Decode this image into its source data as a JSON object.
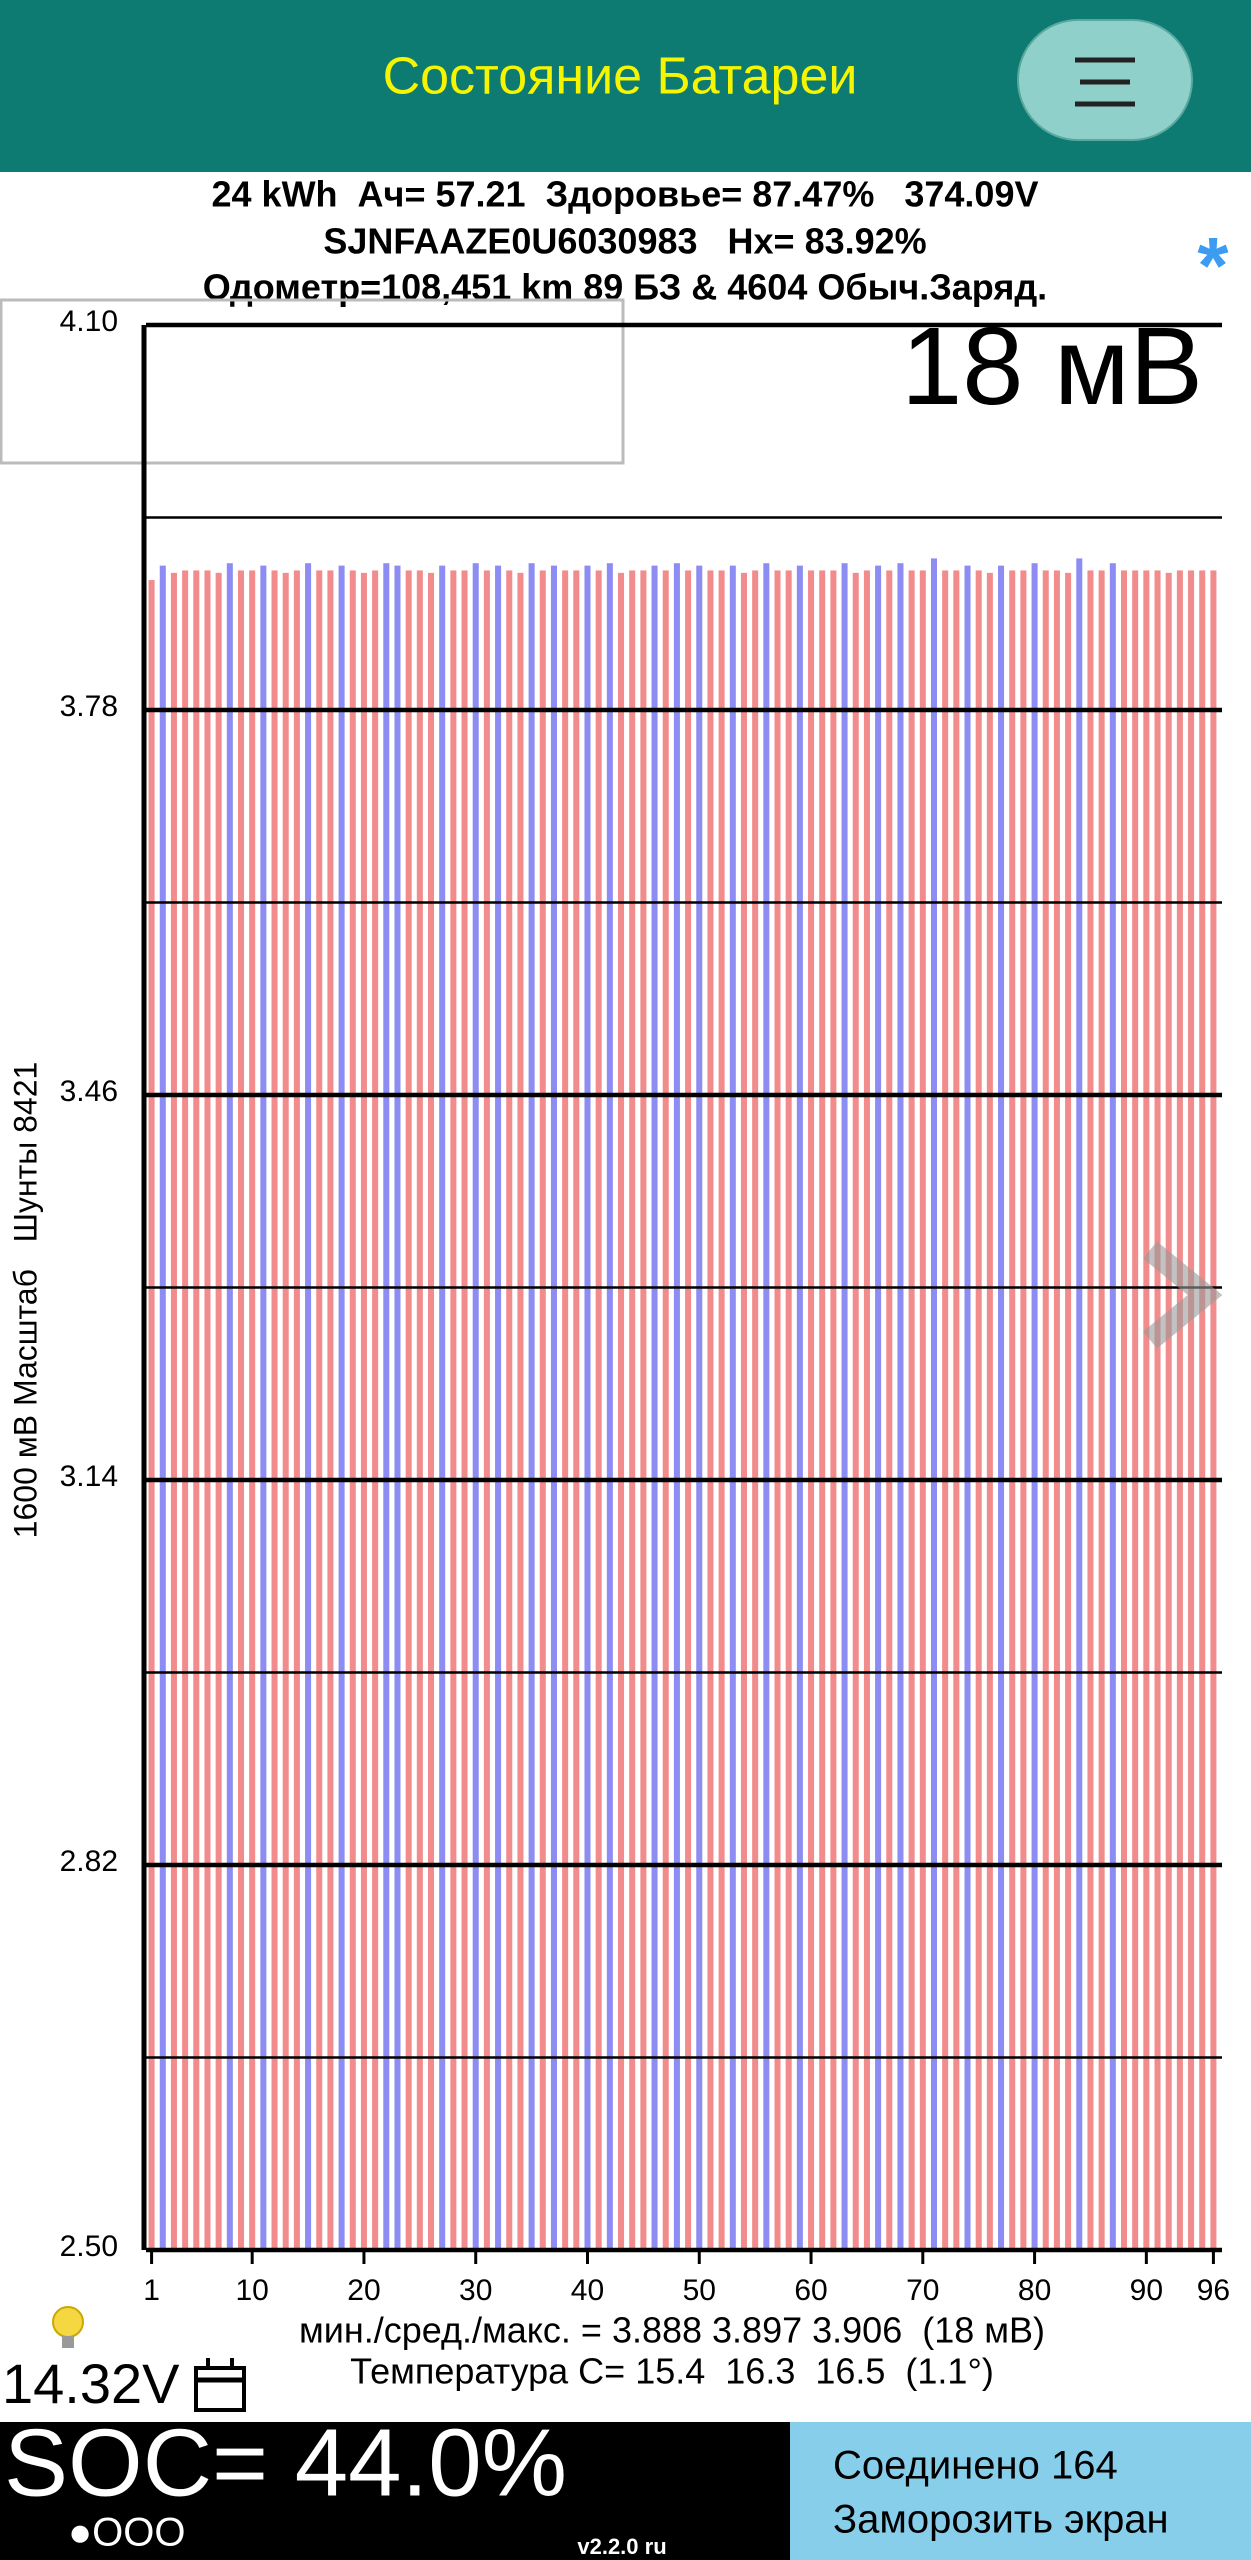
{
  "header": {
    "title": "Состояние Батареи"
  },
  "info": {
    "line1": "24 kWh  Ач= 57.21  Здоровье= 87.47%   374.09V",
    "line2": "SJNFAAZE0U6030983   Hx= 83.92%",
    "line3": "Одометр=108,451 km 89 БЗ & 4604 Обыч.Заряд.",
    "marker": "*"
  },
  "chart_data": {
    "type": "bar",
    "overlay_label": "18 мВ",
    "y_axis_label": "1600 мВ Масштаб   Шунты 8421",
    "categories": [
      1,
      null,
      null,
      null,
      null,
      null,
      null,
      null,
      null,
      10,
      null,
      null,
      null,
      null,
      null,
      null,
      null,
      null,
      null,
      20,
      null,
      null,
      null,
      null,
      null,
      null,
      null,
      null,
      null,
      30,
      null,
      null,
      null,
      null,
      null,
      null,
      null,
      null,
      null,
      40,
      null,
      null,
      null,
      null,
      null,
      null,
      null,
      null,
      null,
      50,
      null,
      null,
      null,
      null,
      null,
      null,
      null,
      null,
      null,
      60,
      null,
      null,
      null,
      null,
      null,
      null,
      null,
      null,
      null,
      70,
      null,
      null,
      null,
      null,
      null,
      null,
      null,
      null,
      null,
      80,
      null,
      null,
      null,
      null,
      null,
      null,
      null,
      null,
      null,
      90,
      null,
      null,
      null,
      null,
      null,
      96
    ],
    "values": [
      3.888,
      3.9,
      3.894,
      3.896,
      3.896,
      3.896,
      3.894,
      3.902,
      3.896,
      3.896,
      3.9,
      3.896,
      3.894,
      3.896,
      3.902,
      3.896,
      3.896,
      3.9,
      3.896,
      3.894,
      3.896,
      3.902,
      3.9,
      3.896,
      3.896,
      3.894,
      3.9,
      3.896,
      3.896,
      3.902,
      3.896,
      3.9,
      3.896,
      3.894,
      3.902,
      3.896,
      3.9,
      3.896,
      3.896,
      3.9,
      3.896,
      3.902,
      3.894,
      3.896,
      3.896,
      3.9,
      3.896,
      3.902,
      3.896,
      3.9,
      3.896,
      3.896,
      3.9,
      3.894,
      3.896,
      3.902,
      3.896,
      3.896,
      3.9,
      3.896,
      3.896,
      3.896,
      3.902,
      3.894,
      3.896,
      3.9,
      3.896,
      3.902,
      3.896,
      3.896,
      3.906,
      3.896,
      3.896,
      3.9,
      3.896,
      3.894,
      3.9,
      3.896,
      3.896,
      3.902,
      3.896,
      3.896,
      3.894,
      3.906,
      3.896,
      3.896,
      3.902,
      3.896,
      3.896,
      3.896,
      3.896,
      3.894,
      3.896,
      3.896,
      3.896,
      3.896
    ],
    "colors": [
      "#f28c8c",
      "#8c8cf2",
      "#f28c8c",
      "#f28c8c",
      "#f28c8c",
      "#f28c8c",
      "#f28c8c",
      "#8c8cf2",
      "#f28c8c",
      "#f28c8c",
      "#8c8cf2",
      "#f28c8c",
      "#f28c8c",
      "#f28c8c",
      "#8c8cf2",
      "#f28c8c",
      "#f28c8c",
      "#8c8cf2",
      "#f28c8c",
      "#f28c8c",
      "#f28c8c",
      "#8c8cf2",
      "#8c8cf2",
      "#f28c8c",
      "#f28c8c",
      "#f28c8c",
      "#8c8cf2",
      "#f28c8c",
      "#f28c8c",
      "#8c8cf2",
      "#f28c8c",
      "#8c8cf2",
      "#f28c8c",
      "#f28c8c",
      "#8c8cf2",
      "#f28c8c",
      "#8c8cf2",
      "#f28c8c",
      "#f28c8c",
      "#8c8cf2",
      "#f28c8c",
      "#8c8cf2",
      "#f28c8c",
      "#f28c8c",
      "#f28c8c",
      "#8c8cf2",
      "#f28c8c",
      "#8c8cf2",
      "#f28c8c",
      "#8c8cf2",
      "#f28c8c",
      "#f28c8c",
      "#8c8cf2",
      "#f28c8c",
      "#f28c8c",
      "#8c8cf2",
      "#f28c8c",
      "#f28c8c",
      "#8c8cf2",
      "#f28c8c",
      "#f28c8c",
      "#f28c8c",
      "#8c8cf2",
      "#f28c8c",
      "#f28c8c",
      "#8c8cf2",
      "#f28c8c",
      "#8c8cf2",
      "#f28c8c",
      "#f28c8c",
      "#8c8cf2",
      "#f28c8c",
      "#f28c8c",
      "#8c8cf2",
      "#f28c8c",
      "#f28c8c",
      "#8c8cf2",
      "#f28c8c",
      "#f28c8c",
      "#8c8cf2",
      "#f28c8c",
      "#f28c8c",
      "#f28c8c",
      "#8c8cf2",
      "#f28c8c",
      "#f28c8c",
      "#8c8cf2",
      "#f28c8c",
      "#f28c8c",
      "#f28c8c",
      "#f28c8c",
      "#f28c8c",
      "#f28c8c",
      "#f28c8c",
      "#f28c8c",
      "#f28c8c"
    ],
    "ylim": [
      2.5,
      4.1
    ],
    "yticks": [
      {
        "value": 4.1,
        "label": "4.10"
      },
      3.78,
      3.46,
      3.14,
      2.82,
      {
        "value": 2.5,
        "label": "2.50"
      }
    ],
    "minor_yticks": [
      3.94,
      3.62,
      3.3,
      2.98,
      2.66
    ],
    "grid": true
  },
  "stats": {
    "minmax": "мин./сред./макс. = 3.888 3.897 3.906  (18 мВ)",
    "temperature": "Температура C= 15.4  16.3  16.5  (1.1°)",
    "voltage": "14.32V"
  },
  "footer": {
    "soc": "SOC= 44.0%",
    "dots": "●OOO",
    "version": "v2.2.0 ru",
    "connected": "Соединено 164",
    "freeze": "Заморозить экран"
  }
}
